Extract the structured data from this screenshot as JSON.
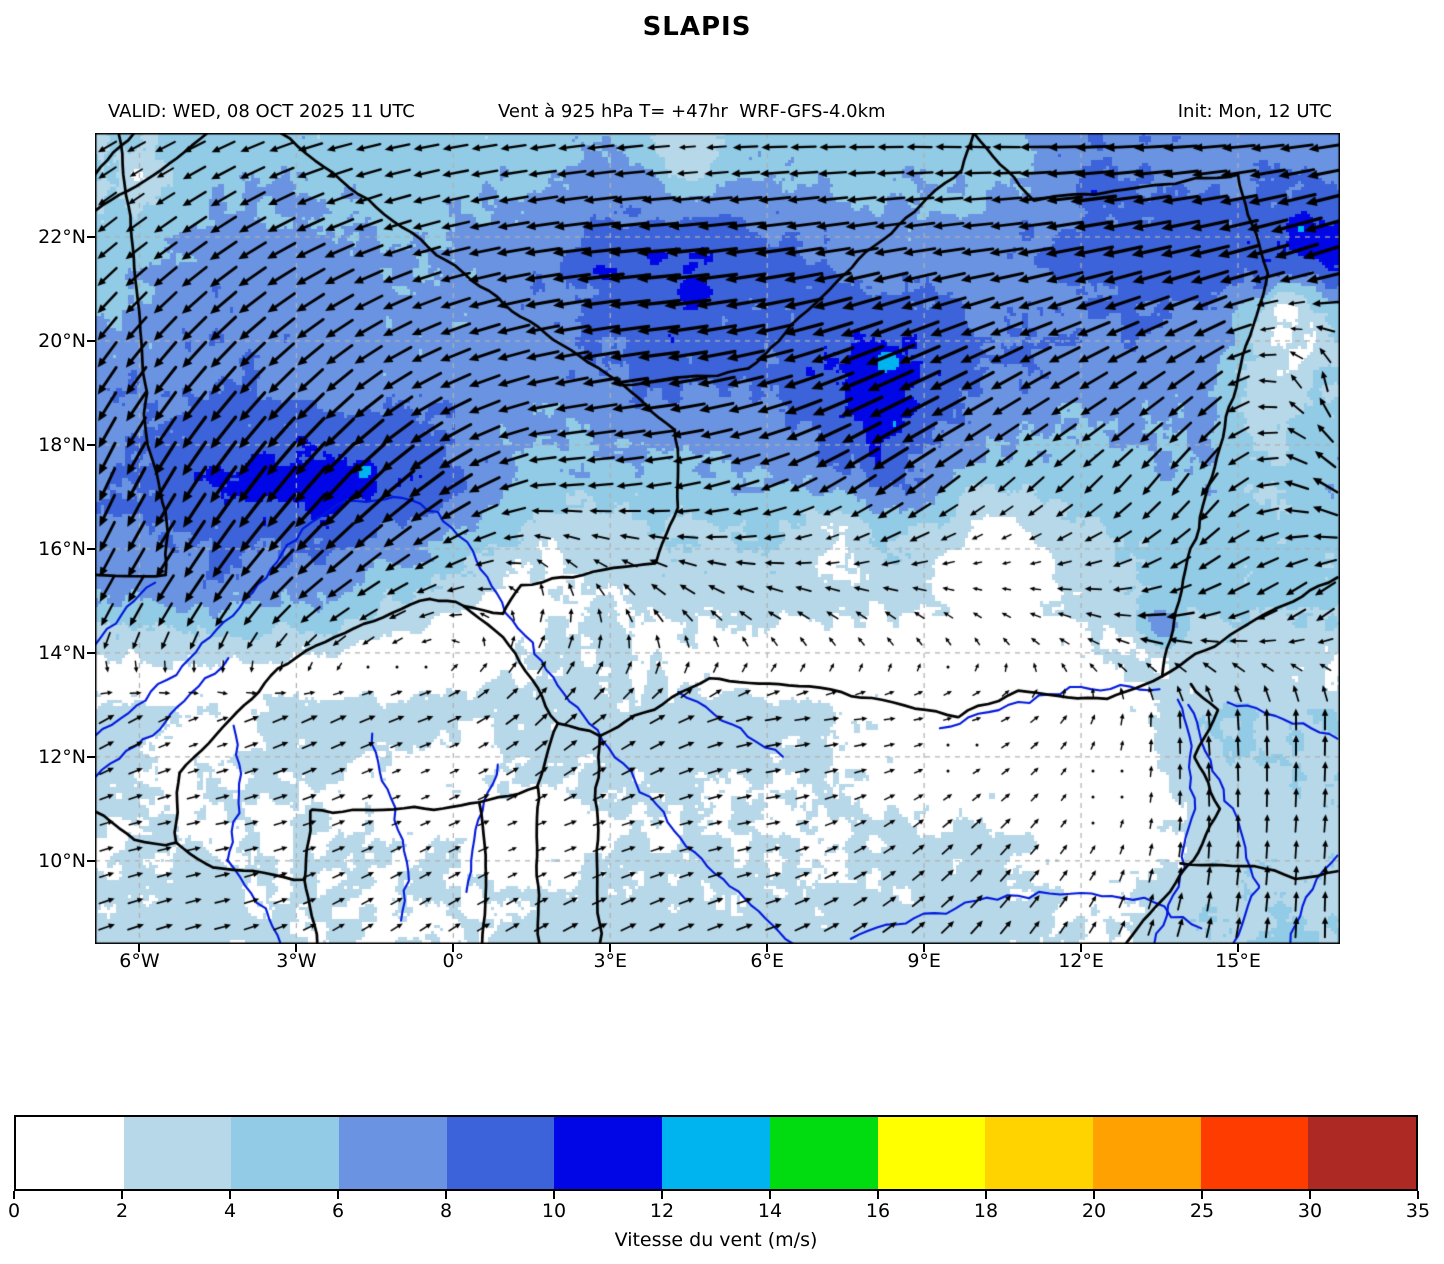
{
  "title": "SLAPIS",
  "header": {
    "valid": "VALID: WED, 08 OCT 2025 11 UTC",
    "product": "Vent à 925 hPa T= +47hr  WRF-GFS-4.0km",
    "init": "Init: Mon, 12 UTC"
  },
  "map": {
    "lon_ticks": [
      {
        "label": "6°W",
        "value": -6
      },
      {
        "label": "3°W",
        "value": -3
      },
      {
        "label": "0°",
        "value": 0
      },
      {
        "label": "3°E",
        "value": 3
      },
      {
        "label": "6°E",
        "value": 6
      },
      {
        "label": "9°E",
        "value": 9
      },
      {
        "label": "12°E",
        "value": 12
      },
      {
        "label": "15°E",
        "value": 15
      }
    ],
    "lat_ticks": [
      {
        "label": "22°N",
        "value": 22
      },
      {
        "label": "20°N",
        "value": 20
      },
      {
        "label": "18°N",
        "value": 18
      },
      {
        "label": "16°N",
        "value": 16
      },
      {
        "label": "14°N",
        "value": 14
      },
      {
        "label": "12°N",
        "value": 12
      },
      {
        "label": "10°N",
        "value": 10
      }
    ]
  },
  "colorbar": {
    "label": "Vitesse du vent (m/s)",
    "ticks": [
      0,
      2,
      4,
      6,
      8,
      10,
      12,
      14,
      16,
      18,
      20,
      25,
      30,
      35
    ],
    "colors": [
      "#ffffff",
      "#b7d8e9",
      "#92cbe5",
      "#6a94e2",
      "#3c63d9",
      "#0006e6",
      "#00b4f0",
      "#00dc10",
      "#ffff00",
      "#ffd300",
      "#ffa100",
      "#ff3c00",
      "#ad2a24"
    ]
  },
  "chart_data": {
    "type": "heatmap",
    "field": "wind speed at 925 hPa with wind-vector (quiver) overlay",
    "units": "m/s",
    "extent": {
      "lon_min": -6.85,
      "lon_max": 16.95,
      "lat_min": 8.4,
      "lat_max": 24.0
    },
    "grid_lons": [
      -6.6,
      -4.5,
      -2.4,
      -0.3,
      1.8,
      3.9,
      6.0,
      8.1,
      10.2,
      12.3,
      14.4,
      16.5
    ],
    "grid_lats": [
      23.8,
      21.6,
      19.4,
      17.2,
      15.0,
      12.8,
      10.6,
      8.4
    ],
    "speed": [
      [
        4,
        5,
        5,
        5,
        5,
        6,
        5,
        5,
        5,
        8,
        7,
        7
      ],
      [
        5,
        7,
        7,
        6,
        8,
        10,
        9,
        7,
        7,
        9,
        9,
        11
      ],
      [
        7,
        8,
        7,
        7,
        7,
        9,
        8,
        12,
        8,
        7,
        7,
        4
      ],
      [
        8,
        10,
        11,
        9.5,
        5,
        5,
        6,
        9,
        5,
        5,
        6,
        6
      ],
      [
        6,
        7,
        6,
        3,
        2,
        3,
        3,
        2.5,
        2,
        3,
        5,
        5
      ],
      [
        3,
        3,
        3,
        3,
        3,
        3,
        3,
        2,
        2,
        1.5,
        4,
        4
      ],
      [
        2,
        2,
        2,
        2,
        2,
        2,
        2,
        2,
        3,
        1.5,
        3,
        3
      ],
      [
        3,
        3,
        2,
        2,
        3,
        3,
        3,
        3,
        3,
        2,
        4,
        4
      ]
    ],
    "toward_deg": [
      [
        240,
        245,
        255,
        260,
        262,
        265,
        268,
        270,
        272,
        268,
        266,
        262
      ],
      [
        230,
        235,
        245,
        255,
        262,
        265,
        262,
        260,
        262,
        258,
        256,
        252
      ],
      [
        215,
        222,
        230,
        245,
        258,
        262,
        255,
        247,
        242,
        240,
        235,
        350
      ],
      [
        205,
        215,
        222,
        235,
        268,
        262,
        250,
        235,
        230,
        225,
        215,
        300
      ],
      [
        210,
        215,
        235,
        255,
        10,
        315,
        295,
        300,
        295,
        280,
        250,
        230
      ],
      [
        60,
        70,
        65,
        70,
        45,
        60,
        80,
        85,
        70,
        20,
        355,
        0
      ],
      [
        75,
        80,
        70,
        65,
        70,
        75,
        80,
        60,
        45,
        30,
        0,
        5
      ],
      [
        70,
        75,
        60,
        55,
        60,
        65,
        70,
        55,
        40,
        30,
        15,
        0
      ]
    ],
    "peaks": [
      {
        "lon": 8.3,
        "lat": 19.6,
        "s": 14.5,
        "r": 0.55
      },
      {
        "lon": 8.45,
        "lat": 18.4,
        "s": 11.5,
        "r": 0.45
      },
      {
        "lon": -1.7,
        "lat": 17.5,
        "s": 12.6,
        "r": 0.5
      },
      {
        "lon": -2.6,
        "lat": 16.9,
        "s": 11.0,
        "r": 0.8
      },
      {
        "lon": 4.6,
        "lat": 20.9,
        "s": 11.0,
        "r": 1.0
      },
      {
        "lon": 2.9,
        "lat": 21.3,
        "s": 11.0,
        "r": 0.7
      },
      {
        "lon": 16.2,
        "lat": 22.2,
        "s": 12.5,
        "r": 0.6
      },
      {
        "lon": 15.5,
        "lat": 21.0,
        "s": 11.0,
        "r": 0.5
      },
      {
        "lon": 12.2,
        "lat": 22.8,
        "s": 10.5,
        "r": 0.7
      },
      {
        "lon": 13.6,
        "lat": 14.6,
        "s": 7.0,
        "r": 0.7
      }
    ],
    "troughs": [
      {
        "lon": 10.4,
        "lat": 15.7,
        "r": 1.2,
        "a": 0.75
      },
      {
        "lon": 9.6,
        "lat": 12.1,
        "r": 1.4,
        "a": 0.8
      },
      {
        "lon": 12.4,
        "lat": 11.3,
        "r": 1.3,
        "a": 0.85
      },
      {
        "lon": 15.9,
        "lat": 20.4,
        "r": 0.7,
        "a": 0.8
      },
      {
        "lon": -0.9,
        "lat": 11.4,
        "r": 0.9,
        "a": 0.75
      },
      {
        "lon": -4.8,
        "lat": 12.4,
        "r": 0.9,
        "a": 0.7
      },
      {
        "lon": 1.3,
        "lat": 10.2,
        "r": 0.8,
        "a": 0.7
      },
      {
        "lon": -5.9,
        "lat": 23.1,
        "r": 0.5,
        "a": 0.6
      },
      {
        "lon": 4.5,
        "lat": 23.6,
        "r": 0.8,
        "a": 0.55
      },
      {
        "lon": 7.3,
        "lat": 16.2,
        "r": 0.9,
        "a": 0.6
      },
      {
        "lon": 0.3,
        "lat": 12.0,
        "r": 0.7,
        "a": 0.6
      }
    ],
    "gridline_lons": [
      -6,
      -3,
      0,
      3,
      6,
      9,
      12,
      15
    ],
    "gridline_lats": [
      10,
      12,
      14,
      16,
      18,
      20,
      22
    ],
    "borders": [
      [
        [
          -6.4,
          24
        ],
        [
          -6.15,
          22
        ],
        [
          -5.95,
          20
        ],
        [
          -5.85,
          18
        ],
        [
          -5.5,
          16.7
        ],
        [
          -5.5,
          15.5
        ]
      ],
      [
        [
          -5.5,
          15.5
        ],
        [
          -6.85,
          15.5
        ]
      ],
      [
        [
          -6.85,
          22.5
        ],
        [
          -5.6,
          23.3
        ],
        [
          -4.7,
          24
        ]
      ],
      [
        [
          -6.85,
          23.2
        ],
        [
          -6.1,
          24
        ]
      ],
      [
        [
          -3.3,
          24
        ],
        [
          0.2,
          21.3
        ],
        [
          1.9,
          20
        ],
        [
          3.25,
          19.15
        ]
      ],
      [
        [
          3.25,
          19.15
        ],
        [
          4.25,
          18.3
        ],
        [
          4.25,
          16.8
        ],
        [
          3.85,
          15.75
        ],
        [
          1.3,
          15.3
        ],
        [
          0.95,
          14.75
        ],
        [
          0.2,
          14.9
        ]
      ],
      [
        [
          0.2,
          14.9
        ],
        [
          0.95,
          14.3
        ],
        [
          2.0,
          12.65
        ],
        [
          2.8,
          12.4
        ]
      ],
      [
        [
          3.25,
          19.15
        ],
        [
          5.65,
          19.45
        ],
        [
          7.9,
          21.7
        ],
        [
          9.7,
          23.3
        ],
        [
          9.95,
          24
        ]
      ],
      [
        [
          9.95,
          24
        ],
        [
          11.1,
          22.7
        ],
        [
          13.4,
          23.0
        ],
        [
          15.0,
          23.2
        ]
      ],
      [
        [
          15.0,
          23.2
        ],
        [
          15.55,
          21.3
        ],
        [
          15.0,
          19.3
        ],
        [
          14.4,
          17.0
        ],
        [
          13.8,
          14.8
        ],
        [
          13.55,
          13.55
        ]
      ],
      [
        [
          13.55,
          13.55
        ],
        [
          15.2,
          14.55
        ],
        [
          16.9,
          15.45
        ]
      ],
      [
        [
          2.8,
          12.4
        ],
        [
          3.65,
          12.85
        ],
        [
          4.9,
          13.5
        ],
        [
          6.6,
          13.38
        ],
        [
          8.0,
          13.1
        ],
        [
          9.65,
          12.8
        ],
        [
          10.8,
          13.25
        ],
        [
          12.5,
          13.1
        ],
        [
          13.55,
          13.55
        ]
      ],
      [
        [
          2.8,
          12.4
        ],
        [
          2.72,
          11.0
        ],
        [
          2.75,
          9.8
        ],
        [
          2.8,
          8.4
        ]
      ],
      [
        [
          1.62,
          11.4
        ],
        [
          1.6,
          9.9
        ],
        [
          1.65,
          8.4
        ]
      ],
      [
        [
          0.5,
          11.1
        ],
        [
          0.62,
          9.7
        ],
        [
          0.55,
          8.4
        ]
      ],
      [
        [
          -5.3,
          10.35
        ],
        [
          -5.25,
          11.7
        ],
        [
          -4.25,
          12.7
        ],
        [
          -3.35,
          13.7
        ],
        [
          -1.9,
          14.5
        ],
        [
          -0.45,
          15.05
        ],
        [
          0.2,
          14.9
        ]
      ],
      [
        [
          -5.3,
          10.35
        ],
        [
          -4.6,
          9.85
        ],
        [
          -2.85,
          9.65
        ],
        [
          -2.7,
          10.95
        ],
        [
          -0.55,
          11.0
        ],
        [
          0.5,
          11.1
        ],
        [
          1.62,
          11.4
        ],
        [
          2.0,
          12.65
        ]
      ],
      [
        [
          -2.85,
          9.65
        ],
        [
          -2.6,
          8.4
        ]
      ],
      [
        [
          -6.85,
          10.95
        ],
        [
          -6.1,
          10.4
        ],
        [
          -5.5,
          10.3
        ],
        [
          -5.3,
          10.35
        ]
      ],
      [
        [
          14.1,
          13.4
        ],
        [
          14.6,
          12.9
        ],
        [
          14.2,
          12.0
        ],
        [
          14.65,
          11.0
        ],
        [
          14.15,
          10.0
        ],
        [
          13.45,
          9.15
        ],
        [
          12.85,
          8.4
        ]
      ],
      [
        [
          13.9,
          9.95
        ],
        [
          15.3,
          9.9
        ],
        [
          16.1,
          9.65
        ],
        [
          16.9,
          9.8
        ]
      ]
    ],
    "rivers": [
      [
        [
          -6.85,
          12.4
        ],
        [
          -5.9,
          13.1
        ],
        [
          -4.9,
          14.0
        ],
        [
          -3.95,
          15.0
        ],
        [
          -3.2,
          16.1
        ],
        [
          -2.2,
          16.85
        ],
        [
          -1.15,
          17.05
        ],
        [
          -0.3,
          16.7
        ],
        [
          0.35,
          15.95
        ],
        [
          0.9,
          14.95
        ],
        [
          1.7,
          13.85
        ],
        [
          2.6,
          12.65
        ],
        [
          3.6,
          11.35
        ],
        [
          4.6,
          10.15
        ],
        [
          5.7,
          9.15
        ],
        [
          6.5,
          8.4
        ]
      ],
      [
        [
          -6.85,
          11.6
        ],
        [
          -5.9,
          12.3
        ],
        [
          -5.0,
          13.2
        ],
        [
          -4.3,
          13.9
        ]
      ],
      [
        [
          -6.85,
          14.15
        ],
        [
          -6.2,
          14.85
        ],
        [
          -5.7,
          15.35
        ]
      ],
      [
        [
          -4.2,
          12.6
        ],
        [
          -4.05,
          11.3
        ],
        [
          -4.35,
          10.0
        ],
        [
          -3.5,
          8.9
        ],
        [
          -3.3,
          8.4
        ]
      ],
      [
        [
          -1.55,
          12.45
        ],
        [
          -1.2,
          11.2
        ],
        [
          -0.85,
          10.0
        ],
        [
          -1.0,
          8.85
        ]
      ],
      [
        [
          0.85,
          11.85
        ],
        [
          0.45,
          10.6
        ],
        [
          0.25,
          9.4
        ]
      ],
      [
        [
          4.3,
          13.25
        ],
        [
          5.3,
          12.6
        ],
        [
          6.3,
          12.0
        ]
      ],
      [
        [
          9.3,
          12.55
        ],
        [
          10.6,
          13.0
        ],
        [
          12.0,
          13.35
        ],
        [
          13.5,
          13.3
        ]
      ],
      [
        [
          14.3,
          8.7
        ],
        [
          13.2,
          9.25
        ],
        [
          11.8,
          9.4
        ],
        [
          10.2,
          9.25
        ],
        [
          8.8,
          8.9
        ],
        [
          7.6,
          8.5
        ]
      ],
      [
        [
          13.4,
          8.4
        ],
        [
          13.9,
          9.7
        ],
        [
          14.15,
          11.0
        ],
        [
          14.05,
          12.2
        ],
        [
          13.85,
          13.1
        ]
      ],
      [
        [
          14.9,
          8.4
        ],
        [
          15.35,
          9.5
        ],
        [
          14.95,
          10.8
        ],
        [
          14.35,
          12.1
        ],
        [
          14.05,
          13.0
        ]
      ],
      [
        [
          16.9,
          12.35
        ],
        [
          15.9,
          12.75
        ],
        [
          14.8,
          13.05
        ]
      ],
      [
        [
          16.9,
          10.1
        ],
        [
          16.3,
          9.3
        ],
        [
          16.0,
          8.4
        ]
      ]
    ],
    "style": {
      "border_color": "#000000",
      "river_color": "#0018dd",
      "gridline_color": "#b0b0b0",
      "arrow_color": "#000000"
    }
  }
}
